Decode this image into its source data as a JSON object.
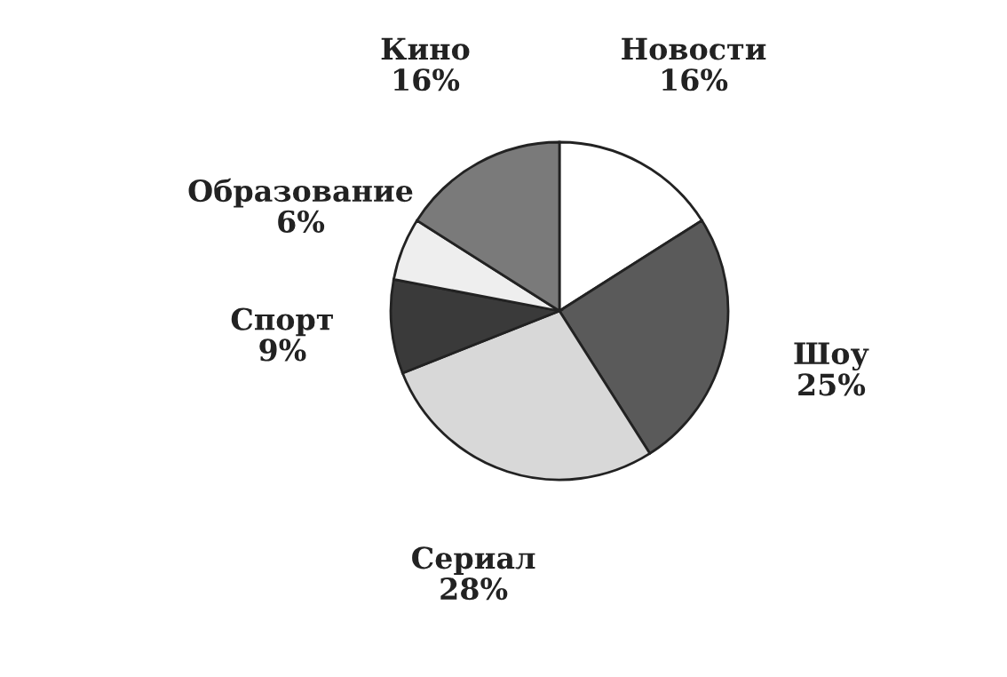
{
  "chart_data": {
    "type": "pie",
    "categories": [
      "Новости",
      "Шоу",
      "Сериал",
      "Спорт",
      "Образование",
      "Кино"
    ],
    "values": [
      16,
      25,
      28,
      9,
      6,
      16
    ],
    "value_labels": [
      "16%",
      "25%",
      "28%",
      "9%",
      "6%",
      "16%"
    ],
    "colors": [
      "#ffffff",
      "#5a5a5a",
      "#d8d8d8",
      "#3a3a3a",
      "#eeeeee",
      "#7a7a7a"
    ]
  }
}
